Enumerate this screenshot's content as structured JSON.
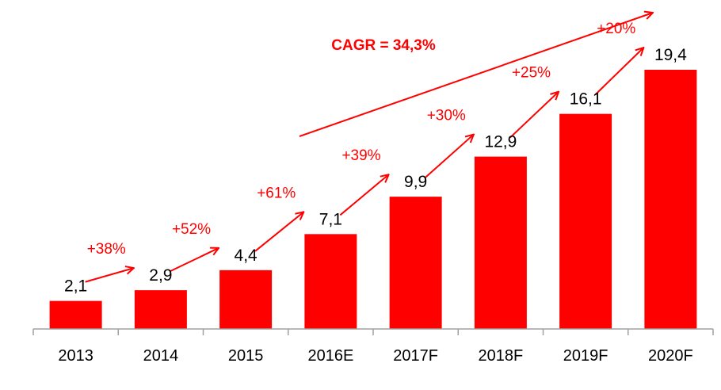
{
  "chart_data": {
    "type": "bar",
    "categories": [
      "2013",
      "2014",
      "2015",
      "2016E",
      "2017F",
      "2018F",
      "2019F",
      "2020F"
    ],
    "values": [
      2.1,
      2.9,
      4.4,
      7.1,
      9.9,
      12.9,
      16.1,
      19.4
    ],
    "value_labels": [
      "2,1",
      "2,9",
      "4,4",
      "7,1",
      "9,9",
      "12,9",
      "16,1",
      "19,4"
    ],
    "growth_labels": [
      "+38%",
      "+52%",
      "+61%",
      "+39%",
      "+30%",
      "+25%",
      "+20%"
    ],
    "cagr_label": "CAGR = 34,3%",
    "title": "",
    "xlabel": "",
    "ylabel": "",
    "ylim": [
      0,
      19.4
    ],
    "grid": false,
    "legend": "none"
  },
  "colors": {
    "bar": "#ff0000",
    "annotation": "#ff0000",
    "axis": "#a0a0a0",
    "text": "#000000"
  }
}
